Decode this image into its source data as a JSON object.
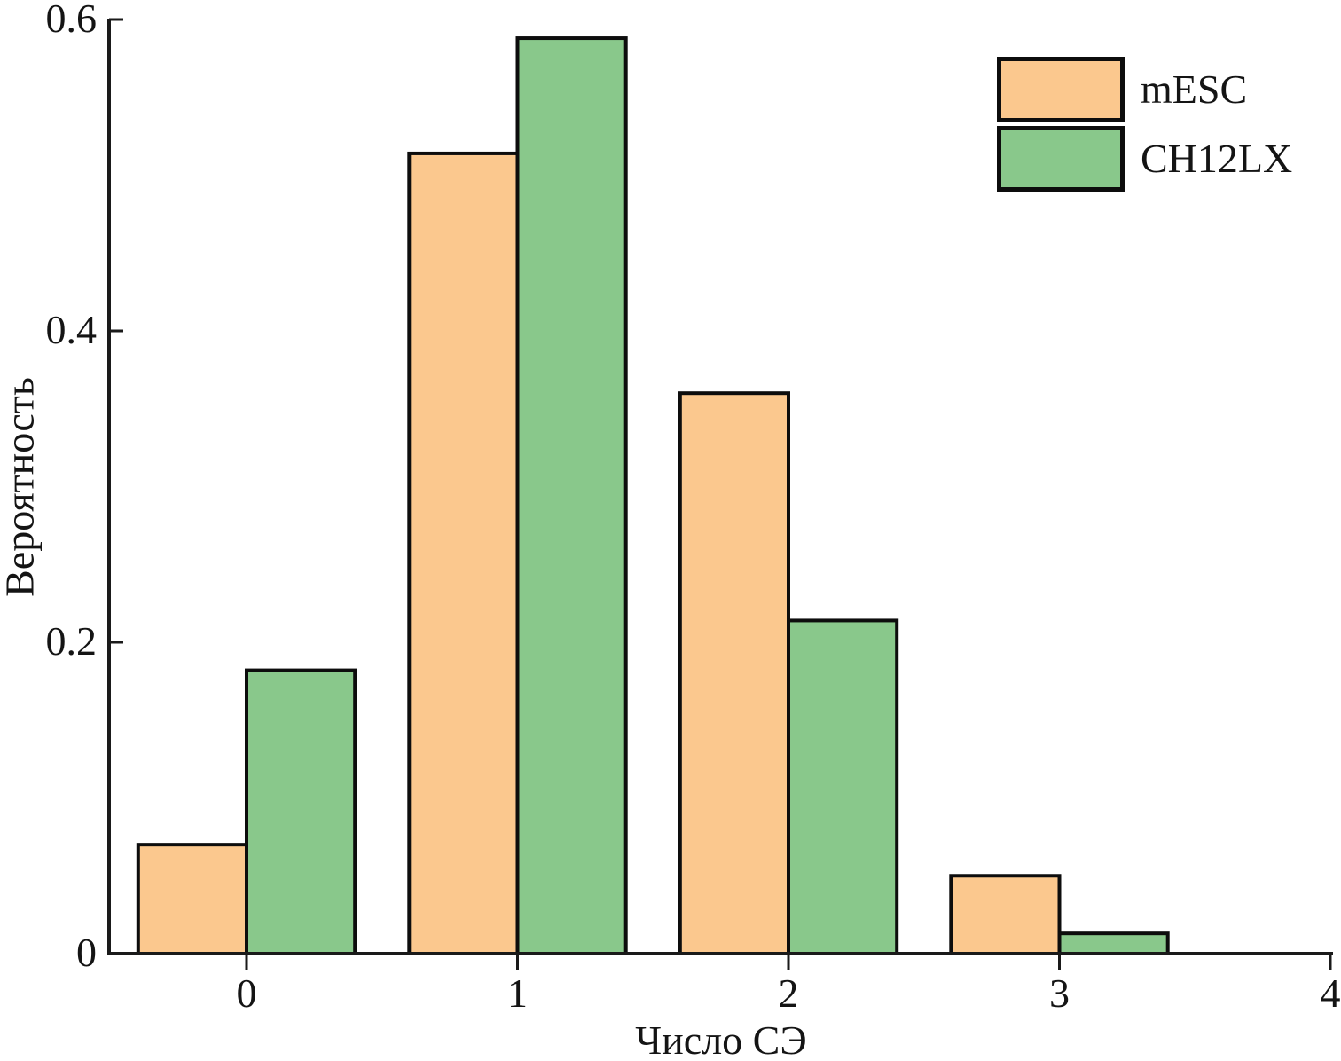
{
  "chart_data": {
    "type": "bar",
    "title": "",
    "xlabel": "Число СЭ",
    "ylabel": "Вероятность",
    "categories": [
      0,
      1,
      2,
      3
    ],
    "series": [
      {
        "name": "mESC",
        "color": "#FBC88E",
        "values": [
          0.07,
          0.514,
          0.36,
          0.05
        ]
      },
      {
        "name": "CH12LX",
        "color": "#89C88B",
        "values": [
          0.182,
          0.588,
          0.214,
          0.013
        ]
      }
    ],
    "bar_width": 0.4,
    "bar_edge_color": "#0d0d0d",
    "axis_color": "#1a1a1a",
    "x_ticks": [
      0,
      1,
      2,
      3,
      4
    ],
    "x_tick_labels": [
      "0",
      "1",
      "2",
      "3",
      "4"
    ],
    "y_ticks": [
      0,
      0.2,
      0.4,
      0.6
    ],
    "y_tick_labels": [
      "0",
      "0.2",
      "0.4",
      "0.6"
    ],
    "xlim": [
      -0.51,
      4.0
    ],
    "ylim": [
      0,
      0.6
    ],
    "grid": false,
    "legend_position": "upper right"
  }
}
